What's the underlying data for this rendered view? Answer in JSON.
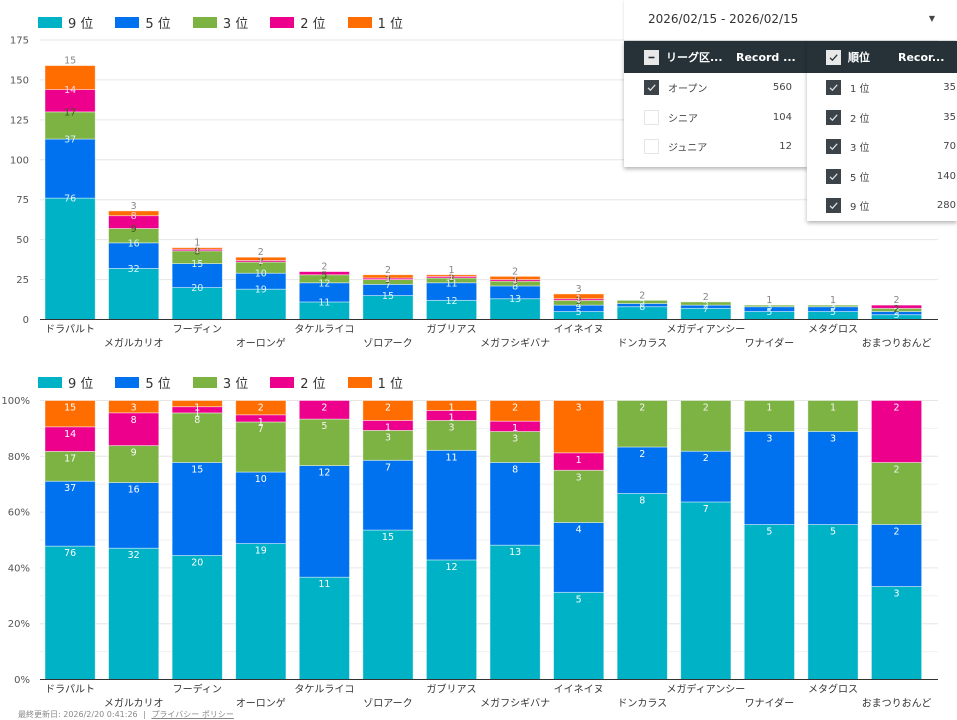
{
  "date_range": {
    "value": "2026/02/15 - 2026/02/15",
    "dropdown_icon": "caret-down-icon"
  },
  "filter_league": {
    "header_label": "リーグ区...",
    "header_metric": "Record ...",
    "header_state": "partial",
    "rows": [
      {
        "label": "オープン",
        "count": "560",
        "checked": true
      },
      {
        "label": "シニア",
        "count": "104",
        "checked": false
      },
      {
        "label": "ジュニア",
        "count": "12",
        "checked": false
      }
    ]
  },
  "filter_rank": {
    "header_label": "順位",
    "header_metric": "Recor...",
    "header_state": "all",
    "rows": [
      {
        "label": "1 位",
        "count": "35",
        "checked": true
      },
      {
        "label": "2 位",
        "count": "35",
        "checked": true
      },
      {
        "label": "3 位",
        "count": "70",
        "checked": true
      },
      {
        "label": "5 位",
        "count": "140",
        "checked": true
      },
      {
        "label": "9 位",
        "count": "280",
        "checked": true
      }
    ]
  },
  "footer": {
    "updated": "最終更新日: 2026/2/20 0:41:26",
    "separator": "|",
    "privacy_link": "プライバシー ポリシー"
  },
  "colors": {
    "9位": "#00B2C6",
    "5位": "#0072F0",
    "3位": "#7CB342",
    "2位": "#EC008C",
    "1位": "#FF6D00"
  },
  "chart_data": [
    {
      "type": "bar",
      "stacked": true,
      "title": "",
      "xlabel": "",
      "ylabel": "",
      "ylim": [
        0,
        175
      ],
      "yticks": [
        0,
        25,
        50,
        75,
        100,
        125,
        150,
        175
      ],
      "grid": true,
      "legend": "top-left",
      "categories": [
        "ドラパルト",
        "メガルカリオ",
        "フーディン",
        "オーロンゲ",
        "タケルライコ",
        "ゾロアーク",
        "ガブリアス",
        "メガフシギバナ",
        "イイネイヌ",
        "ドンカラス",
        "メガディアンシー",
        "ワナイダー",
        "メタグロス",
        "おまつりおんど"
      ],
      "series": [
        {
          "name": "9 位",
          "key": "9位",
          "values": [
            76,
            32,
            20,
            19,
            11,
            15,
            12,
            13,
            5,
            8,
            7,
            5,
            5,
            3
          ]
        },
        {
          "name": "5 位",
          "key": "5位",
          "values": [
            37,
            16,
            15,
            10,
            12,
            7,
            11,
            8,
            4,
            2,
            2,
            3,
            3,
            2
          ]
        },
        {
          "name": "3 位",
          "key": "3位",
          "values": [
            17,
            9,
            8,
            7,
            5,
            3,
            3,
            3,
            3,
            2,
            2,
            1,
            1,
            2
          ]
        },
        {
          "name": "2 位",
          "key": "2位",
          "values": [
            14,
            8,
            1,
            1,
            2,
            1,
            1,
            1,
            1,
            0,
            0,
            0,
            0,
            2
          ]
        },
        {
          "name": "1 位",
          "key": "1位",
          "values": [
            15,
            3,
            1,
            2,
            0,
            2,
            1,
            2,
            3,
            0,
            0,
            0,
            0,
            0
          ]
        }
      ]
    },
    {
      "type": "bar",
      "stacked": true,
      "normalized": "percent",
      "title": "",
      "xlabel": "",
      "ylabel": "",
      "ylim": [
        0,
        100
      ],
      "yticks": [
        "0%",
        "20%",
        "40%",
        "60%",
        "80%",
        "100%"
      ],
      "grid": true,
      "legend": "top-left",
      "categories": [
        "ドラパルト",
        "メガルカリオ",
        "フーディン",
        "オーロンゲ",
        "タケルライコ",
        "ゾロアーク",
        "ガブリアス",
        "メガフシギバナ",
        "イイネイヌ",
        "ドンカラス",
        "メガディアンシー",
        "ワナイダー",
        "メタグロス",
        "おまつりおんど"
      ],
      "series": [
        {
          "name": "9 位",
          "key": "9位",
          "values": [
            76,
            32,
            20,
            19,
            11,
            15,
            12,
            13,
            5,
            8,
            7,
            5,
            5,
            3
          ]
        },
        {
          "name": "5 位",
          "key": "5位",
          "values": [
            37,
            16,
            15,
            10,
            12,
            7,
            11,
            8,
            4,
            2,
            2,
            3,
            3,
            2
          ]
        },
        {
          "name": "3 位",
          "key": "3位",
          "values": [
            17,
            9,
            8,
            7,
            5,
            3,
            3,
            3,
            3,
            2,
            2,
            1,
            1,
            2
          ]
        },
        {
          "name": "2 位",
          "key": "2位",
          "values": [
            14,
            8,
            1,
            1,
            2,
            1,
            1,
            1,
            1,
            0,
            0,
            0,
            0,
            2
          ]
        },
        {
          "name": "1 位",
          "key": "1位",
          "values": [
            15,
            3,
            1,
            2,
            0,
            2,
            1,
            2,
            3,
            0,
            0,
            0,
            0,
            0
          ]
        }
      ]
    }
  ]
}
